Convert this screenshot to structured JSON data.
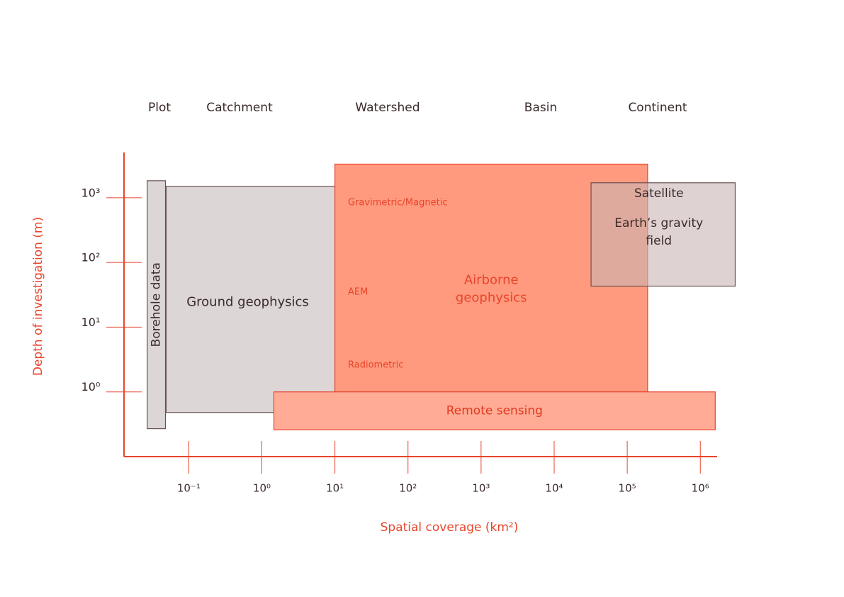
{
  "chart_data": {
    "type": "range",
    "x_label": "Spatial coverage (km²)",
    "y_label": "Depth of investigation (m)",
    "xscale": "log",
    "yscale": "log",
    "axis_color": "#e8452c",
    "xlim": [
      0.013,
      1700000
    ],
    "ylim": [
      0.1,
      5000
    ],
    "xticks": [
      {
        "value": 0.1,
        "label": "10⁻¹"
      },
      {
        "value": 1,
        "label": "10⁰"
      },
      {
        "value": 10,
        "label": "10¹"
      },
      {
        "value": 100,
        "label": "10²"
      },
      {
        "value": 1000,
        "label": "10³"
      },
      {
        "value": 10000,
        "label": "10⁴"
      },
      {
        "value": 100000,
        "label": "10⁵"
      },
      {
        "value": 1000000,
        "label": "10⁶"
      }
    ],
    "yticks": [
      {
        "value": 1,
        "label": "10⁰"
      },
      {
        "value": 10,
        "label": "10¹"
      },
      {
        "value": 100,
        "label": "10²"
      },
      {
        "value": 1000,
        "label": "10³"
      }
    ],
    "scales": [
      "Plot",
      "Catchment",
      "Watershed",
      "Basin",
      "Continent"
    ],
    "annotations": [
      "Gravimetric/Magnetic",
      "AEM",
      "Radiometric"
    ],
    "series": [
      {
        "name": [
          "Borehole data"
        ],
        "color": "#dcd6d6",
        "stroke": "#6b5050",
        "text_color": "#3a2a2a",
        "x": [
          0.027,
          0.048
        ],
        "y": [
          0.27,
          1830
        ]
      },
      {
        "name": [
          "Ground geophysics"
        ],
        "color": "#dcd6d6",
        "stroke": "#6b5050",
        "text_color": "#3a2a2a",
        "x": [
          0.049,
          10
        ],
        "y": [
          0.48,
          1500
        ]
      },
      {
        "name": [
          "Airborne",
          "geophysics"
        ],
        "color": "#ff9a7e",
        "stroke": "#e8452c",
        "text_color": "#e8452c",
        "x": [
          10,
          190000
        ],
        "y": [
          1,
          3300
        ]
      },
      {
        "name": [
          "Satellite",
          "Earth’s gravity",
          "field"
        ],
        "color": "#c8b6b4",
        "stroke": "#6b5050",
        "text_color": "#3a2a2a",
        "x": [
          32000,
          3000000
        ],
        "y": [
          43,
          1700
        ]
      },
      {
        "name": [
          "Remote sensing"
        ],
        "color": "#ffab96",
        "stroke": "#e8452c",
        "text_color": "#e03a20",
        "x": [
          1.46,
          1600000
        ],
        "y": [
          0.26,
          1
        ]
      }
    ]
  }
}
